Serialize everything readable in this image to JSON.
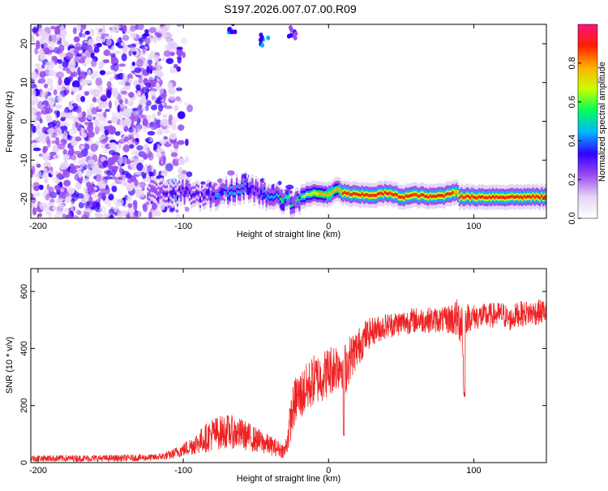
{
  "title": "S197.2026.007.07.00.R09",
  "chart_data": [
    {
      "type": "heatmap",
      "xlabel": "Height of straight line (km)",
      "ylabel": "Frequency (Hz)",
      "xlim": [
        -205,
        150
      ],
      "ylim": [
        -25,
        25
      ],
      "xticks": [
        -200,
        -100,
        0,
        100
      ],
      "yticks": [
        -20,
        -10,
        0,
        10,
        20
      ],
      "colorbar": {
        "label": "Normalized spectral amplitude",
        "range": [
          0,
          1
        ],
        "ticks": [
          "0.0",
          "0.2",
          "0.4",
          "0.6",
          "0.8"
        ],
        "tick_values": [
          0,
          0.2,
          0.4,
          0.6,
          0.8
        ],
        "colors": [
          "#ffffff",
          "#e6d4f5",
          "#9a4df0",
          "#3300ff",
          "#00b7ff",
          "#00ff5a",
          "#c8ff00",
          "#ffb000",
          "#ff2000",
          "#ff1080"
        ]
      },
      "ridge": {
        "x": [
          -120,
          -110,
          -100,
          -90,
          -80,
          -70,
          -60,
          -50,
          -40,
          -30,
          -25,
          -20,
          -10,
          0,
          5,
          10,
          20,
          30,
          40,
          50,
          60,
          70,
          80,
          88,
          90,
          100,
          110,
          120,
          130,
          140,
          150
        ],
        "y": [
          -18.5,
          -19,
          -18,
          -19.5,
          -19,
          -18,
          -17,
          -18,
          -19.5,
          -20,
          -21,
          -19.5,
          -18.5,
          -19,
          -17.5,
          -18.5,
          -19,
          -19,
          -18.5,
          -19.5,
          -19,
          -19.5,
          -19,
          -18,
          -19.5,
          -19.5,
          -19.5,
          -19.5,
          -19.5,
          -19.5,
          -19.5
        ],
        "amplitude": [
          0.25,
          0.3,
          0.35,
          0.3,
          0.35,
          0.4,
          0.4,
          0.35,
          0.45,
          0.55,
          0.5,
          0.6,
          0.7,
          0.8,
          0.75,
          0.85,
          0.9,
          0.9,
          0.85,
          0.9,
          0.85,
          0.85,
          0.9,
          0.8,
          0.85,
          0.9,
          0.9,
          0.9,
          0.9,
          0.9,
          0.9
        ]
      },
      "noise_region_x": [
        -205,
        -115
      ],
      "isolated_features": [
        {
          "x": -45,
          "y": 21,
          "amplitude": 0.3
        },
        {
          "x": -65,
          "y": 24,
          "amplitude": 0.25
        },
        {
          "x": -25,
          "y": 23,
          "amplitude": 0.2
        }
      ]
    },
    {
      "type": "line",
      "xlabel": "Height of straight line (km)",
      "ylabel": "SNR (10 * v/v)",
      "xlim": [
        -205,
        150
      ],
      "ylim": [
        0,
        680
      ],
      "xticks": [
        -200,
        -100,
        0,
        100
      ],
      "yticks": [
        0,
        200,
        400,
        600
      ],
      "color": "#ee2222",
      "envelope": {
        "x": [
          -205,
          -150,
          -120,
          -110,
          -100,
          -90,
          -80,
          -70,
          -60,
          -50,
          -40,
          -35,
          -30,
          -28,
          -25,
          -22,
          -20,
          -15,
          -10,
          -5,
          0,
          5,
          10,
          12,
          15,
          20,
          25,
          30,
          40,
          50,
          60,
          70,
          80,
          85,
          90,
          92,
          93,
          94,
          96,
          100,
          110,
          120,
          125,
          130,
          140,
          150
        ],
        "mean": [
          15,
          15,
          18,
          25,
          45,
          70,
          100,
          110,
          100,
          80,
          60,
          50,
          40,
          90,
          180,
          230,
          230,
          260,
          290,
          300,
          320,
          340,
          350,
          330,
          370,
          400,
          440,
          460,
          480,
          490,
          500,
          500,
          500,
          505,
          500,
          500,
          300,
          500,
          510,
          510,
          515,
          520,
          500,
          520,
          525,
          530
        ],
        "spread": [
          12,
          12,
          12,
          15,
          25,
          40,
          60,
          60,
          55,
          45,
          35,
          30,
          25,
          60,
          80,
          90,
          90,
          90,
          90,
          90,
          90,
          90,
          90,
          90,
          80,
          70,
          60,
          50,
          45,
          45,
          45,
          45,
          45,
          60,
          80,
          90,
          80,
          60,
          50,
          45,
          45,
          45,
          40,
          45,
          45,
          45
        ]
      },
      "dips": [
        {
          "x": 10.5,
          "y": 90
        },
        {
          "x": 93.5,
          "y": 230
        }
      ]
    }
  ]
}
